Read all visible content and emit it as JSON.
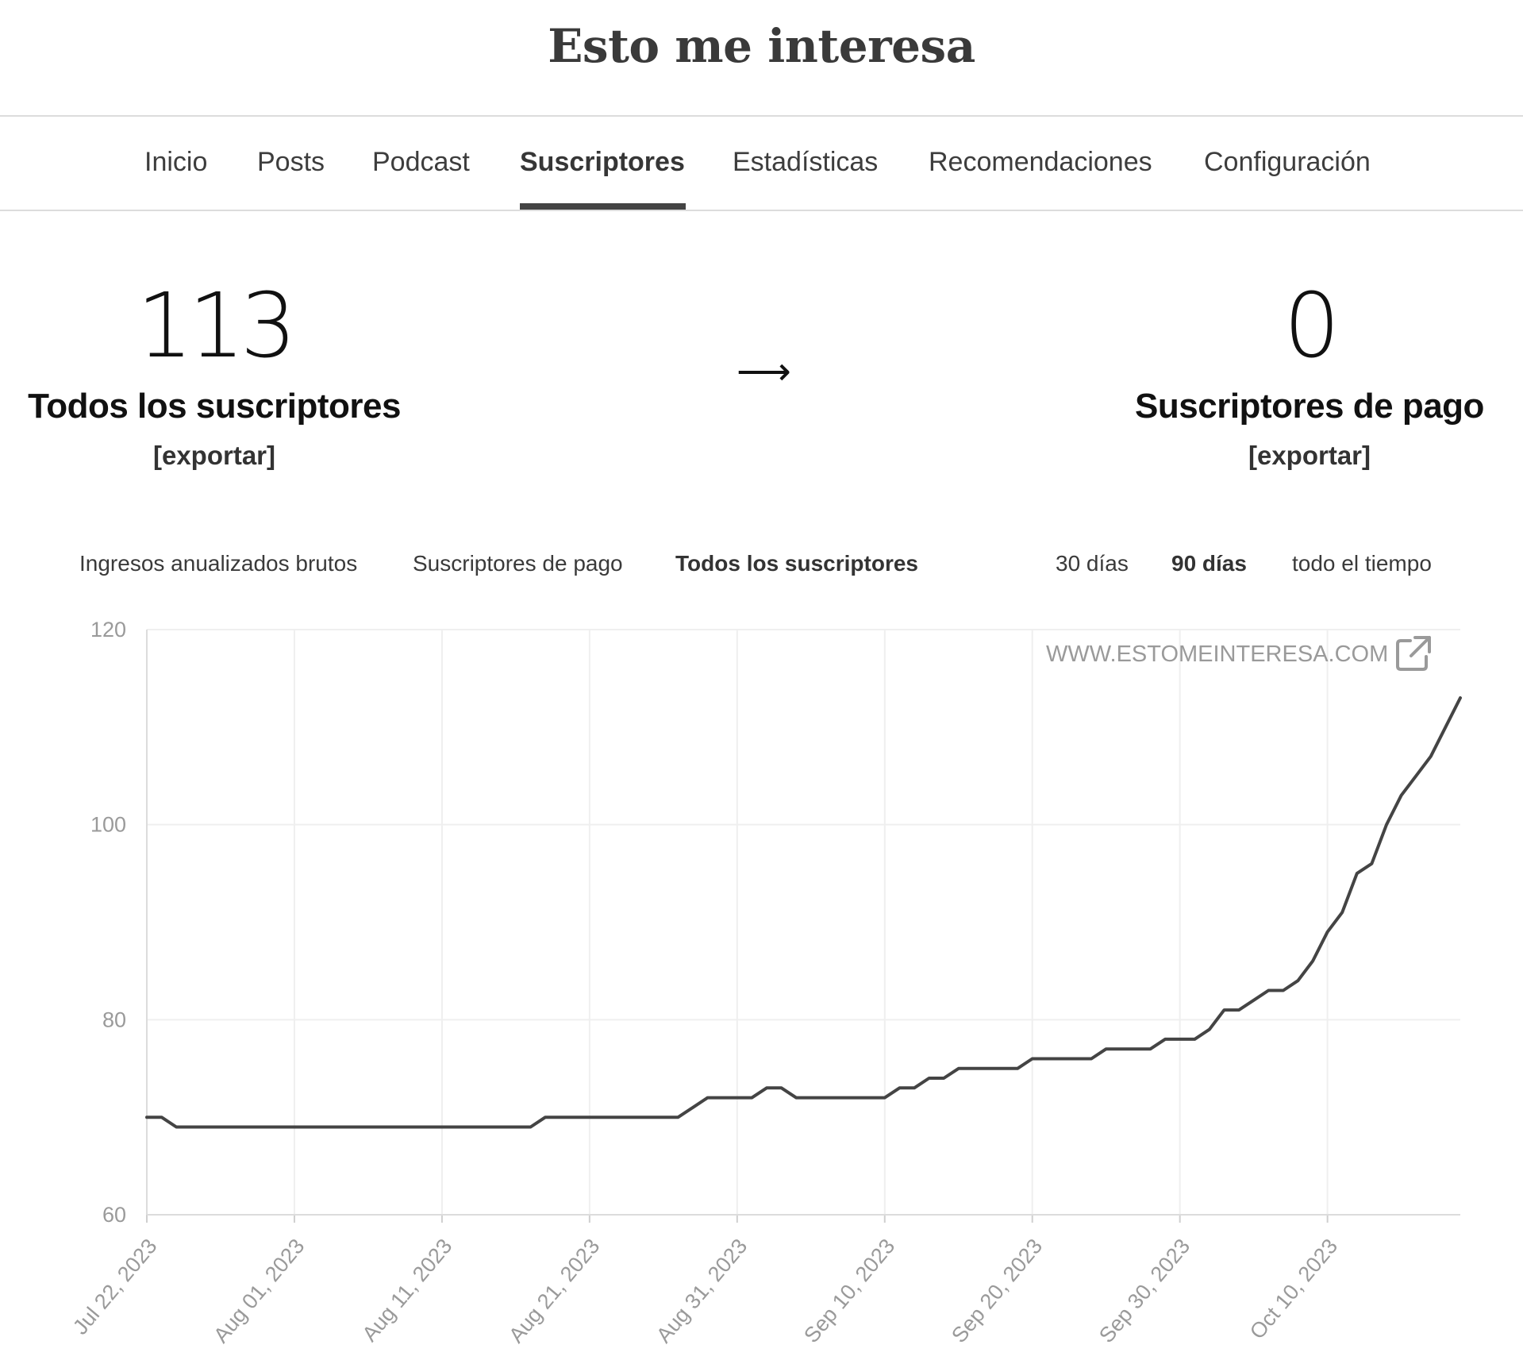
{
  "site": {
    "title": "Esto me interesa"
  },
  "nav": {
    "tabs": [
      {
        "label": "Inicio"
      },
      {
        "label": "Posts"
      },
      {
        "label": "Podcast"
      },
      {
        "label": "Suscriptores",
        "active": true
      },
      {
        "label": "Estadísticas"
      },
      {
        "label": "Recomendaciones"
      },
      {
        "label": "Configuración"
      }
    ]
  },
  "stats": {
    "all": {
      "number": "113",
      "label": "Todos los suscriptores",
      "export": "[exportar]"
    },
    "arrow": "⟶",
    "paid": {
      "number": "0",
      "label": "Suscriptores de pago",
      "export": "[exportar]"
    }
  },
  "metric_tabs": [
    {
      "label": "Ingresos anualizados brutos"
    },
    {
      "label": "Suscriptores de pago"
    },
    {
      "label": "Todos los suscriptores",
      "active": true
    }
  ],
  "range_tabs": [
    {
      "label": "30 días"
    },
    {
      "label": "90 días",
      "active": true
    },
    {
      "label": "todo el tiempo"
    }
  ],
  "watermark": "WWW.ESTOMEINTERESA.COM",
  "icons": {
    "watermark_link": "external-link-icon"
  },
  "colors": {
    "line": "#444444",
    "grid": "#efefef",
    "axis_text": "#9a9a9a"
  },
  "chart_data": {
    "type": "line",
    "title": "",
    "xlabel": "",
    "ylabel": "",
    "ylim": [
      60,
      120
    ],
    "yticks": [
      60,
      80,
      100,
      120
    ],
    "grid": true,
    "xticks": [
      {
        "label": "Jul 22, 2023",
        "date": "2023-07-22"
      },
      {
        "label": "Aug 01, 2023",
        "date": "2023-08-01"
      },
      {
        "label": "Aug 11, 2023",
        "date": "2023-08-11"
      },
      {
        "label": "Aug 21, 2023",
        "date": "2023-08-21"
      },
      {
        "label": "Aug 31, 2023",
        "date": "2023-08-31"
      },
      {
        "label": "Sep 10, 2023",
        "date": "2023-09-10"
      },
      {
        "label": "Sep 20, 2023",
        "date": "2023-09-20"
      },
      {
        "label": "Sep 30, 2023",
        "date": "2023-09-30"
      },
      {
        "label": "Oct 10, 2023",
        "date": "2023-10-10"
      }
    ],
    "xlim": [
      "2023-07-22",
      "2023-10-19"
    ],
    "series": [
      {
        "points": [
          [
            "2023-07-22",
            70
          ],
          [
            "2023-07-23",
            70
          ],
          [
            "2023-07-24",
            69
          ],
          [
            "2023-07-25",
            69
          ],
          [
            "2023-08-16",
            69
          ],
          [
            "2023-08-17",
            69
          ],
          [
            "2023-08-18",
            70
          ],
          [
            "2023-08-19",
            70
          ],
          [
            "2023-08-26",
            70
          ],
          [
            "2023-08-27",
            70
          ],
          [
            "2023-08-28",
            71
          ],
          [
            "2023-08-29",
            72
          ],
          [
            "2023-08-30",
            72
          ],
          [
            "2023-09-01",
            72
          ],
          [
            "2023-09-02",
            73
          ],
          [
            "2023-09-03",
            73
          ],
          [
            "2023-09-04",
            72
          ],
          [
            "2023-09-10",
            72
          ],
          [
            "2023-09-11",
            73
          ],
          [
            "2023-09-12",
            73
          ],
          [
            "2023-09-13",
            74
          ],
          [
            "2023-09-14",
            74
          ],
          [
            "2023-09-15",
            75
          ],
          [
            "2023-09-18",
            75
          ],
          [
            "2023-09-19",
            75
          ],
          [
            "2023-09-20",
            76
          ],
          [
            "2023-09-23",
            76
          ],
          [
            "2023-09-24",
            76
          ],
          [
            "2023-09-25",
            77
          ],
          [
            "2023-09-27",
            77
          ],
          [
            "2023-09-28",
            77
          ],
          [
            "2023-09-29",
            78
          ],
          [
            "2023-10-01",
            78
          ],
          [
            "2023-10-02",
            79
          ],
          [
            "2023-10-03",
            81
          ],
          [
            "2023-10-04",
            81
          ],
          [
            "2023-10-05",
            82
          ],
          [
            "2023-10-06",
            83
          ],
          [
            "2023-10-07",
            83
          ],
          [
            "2023-10-08",
            84
          ],
          [
            "2023-10-09",
            86
          ],
          [
            "2023-10-10",
            89
          ],
          [
            "2023-10-11",
            91
          ],
          [
            "2023-10-12",
            95
          ],
          [
            "2023-10-13",
            96
          ],
          [
            "2023-10-14",
            100
          ],
          [
            "2023-10-15",
            103
          ],
          [
            "2023-10-16",
            105
          ],
          [
            "2023-10-17",
            107
          ],
          [
            "2023-10-18",
            110
          ],
          [
            "2023-10-19",
            113
          ]
        ]
      }
    ]
  }
}
